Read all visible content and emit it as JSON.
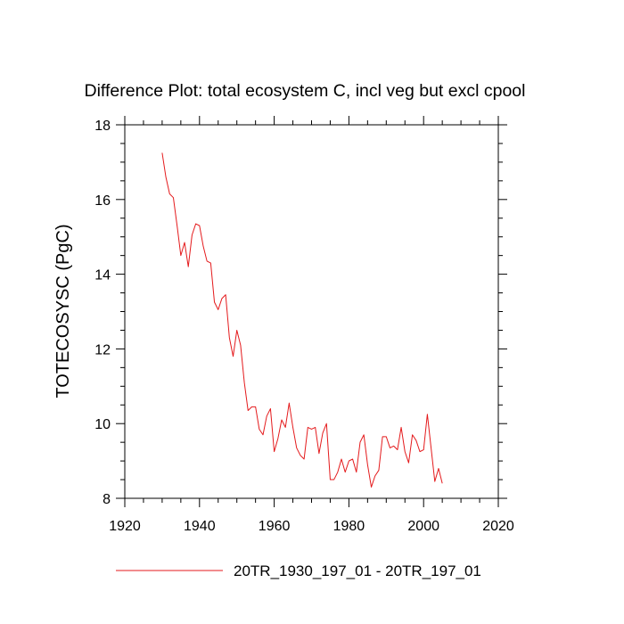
{
  "chart_data": {
    "type": "line",
    "title": "Difference Plot: total ecosystem C, incl veg but excl cpool",
    "xlabel": "",
    "ylabel": "TOTECOSYSC  (PgC)",
    "xlim": [
      1920,
      2020
    ],
    "ylim": [
      8,
      18
    ],
    "x_ticks": [
      "1920",
      "1940",
      "1960",
      "1980",
      "2000",
      "2020"
    ],
    "y_ticks": [
      "8",
      "10",
      "12",
      "14",
      "16",
      "18"
    ],
    "grid": false,
    "legend_position": "bottom",
    "series": [
      {
        "name": "20TR_1930_197_01 - 20TR_197_01",
        "color": "#e41a1c",
        "x": [
          1930,
          1931,
          1932,
          1933,
          1934,
          1935,
          1936,
          1937,
          1938,
          1939,
          1940,
          1941,
          1942,
          1943,
          1944,
          1945,
          1946,
          1947,
          1948,
          1949,
          1950,
          1951,
          1952,
          1953,
          1954,
          1955,
          1956,
          1957,
          1958,
          1959,
          1960,
          1961,
          1962,
          1963,
          1964,
          1965,
          1966,
          1967,
          1968,
          1969,
          1970,
          1971,
          1972,
          1973,
          1974,
          1975,
          1976,
          1977,
          1978,
          1979,
          1980,
          1981,
          1982,
          1983,
          1984,
          1985,
          1986,
          1987,
          1988,
          1989,
          1990,
          1991,
          1992,
          1993,
          1994,
          1995,
          1996,
          1997,
          1998,
          1999,
          2000,
          2001,
          2002,
          2003,
          2004,
          2005
        ],
        "values": [
          17.25,
          16.6,
          16.15,
          16.05,
          15.3,
          14.5,
          14.85,
          14.2,
          15.05,
          15.35,
          15.3,
          14.75,
          14.35,
          14.3,
          13.25,
          13.05,
          13.35,
          13.45,
          12.3,
          11.8,
          12.5,
          12.1,
          11.1,
          10.35,
          10.45,
          10.45,
          9.85,
          9.7,
          10.2,
          10.4,
          9.25,
          9.6,
          10.1,
          9.9,
          10.55,
          9.9,
          9.35,
          9.15,
          9.05,
          9.9,
          9.85,
          9.9,
          9.2,
          9.75,
          10.0,
          8.5,
          8.5,
          8.7,
          9.05,
          8.7,
          9.0,
          9.05,
          8.7,
          9.5,
          9.7,
          8.9,
          8.3,
          8.6,
          8.75,
          9.65,
          9.65,
          9.35,
          9.4,
          9.3,
          9.9,
          9.25,
          8.95,
          9.7,
          9.55,
          9.25,
          9.3,
          10.25,
          9.35,
          8.45,
          8.8,
          8.4
        ]
      }
    ]
  }
}
